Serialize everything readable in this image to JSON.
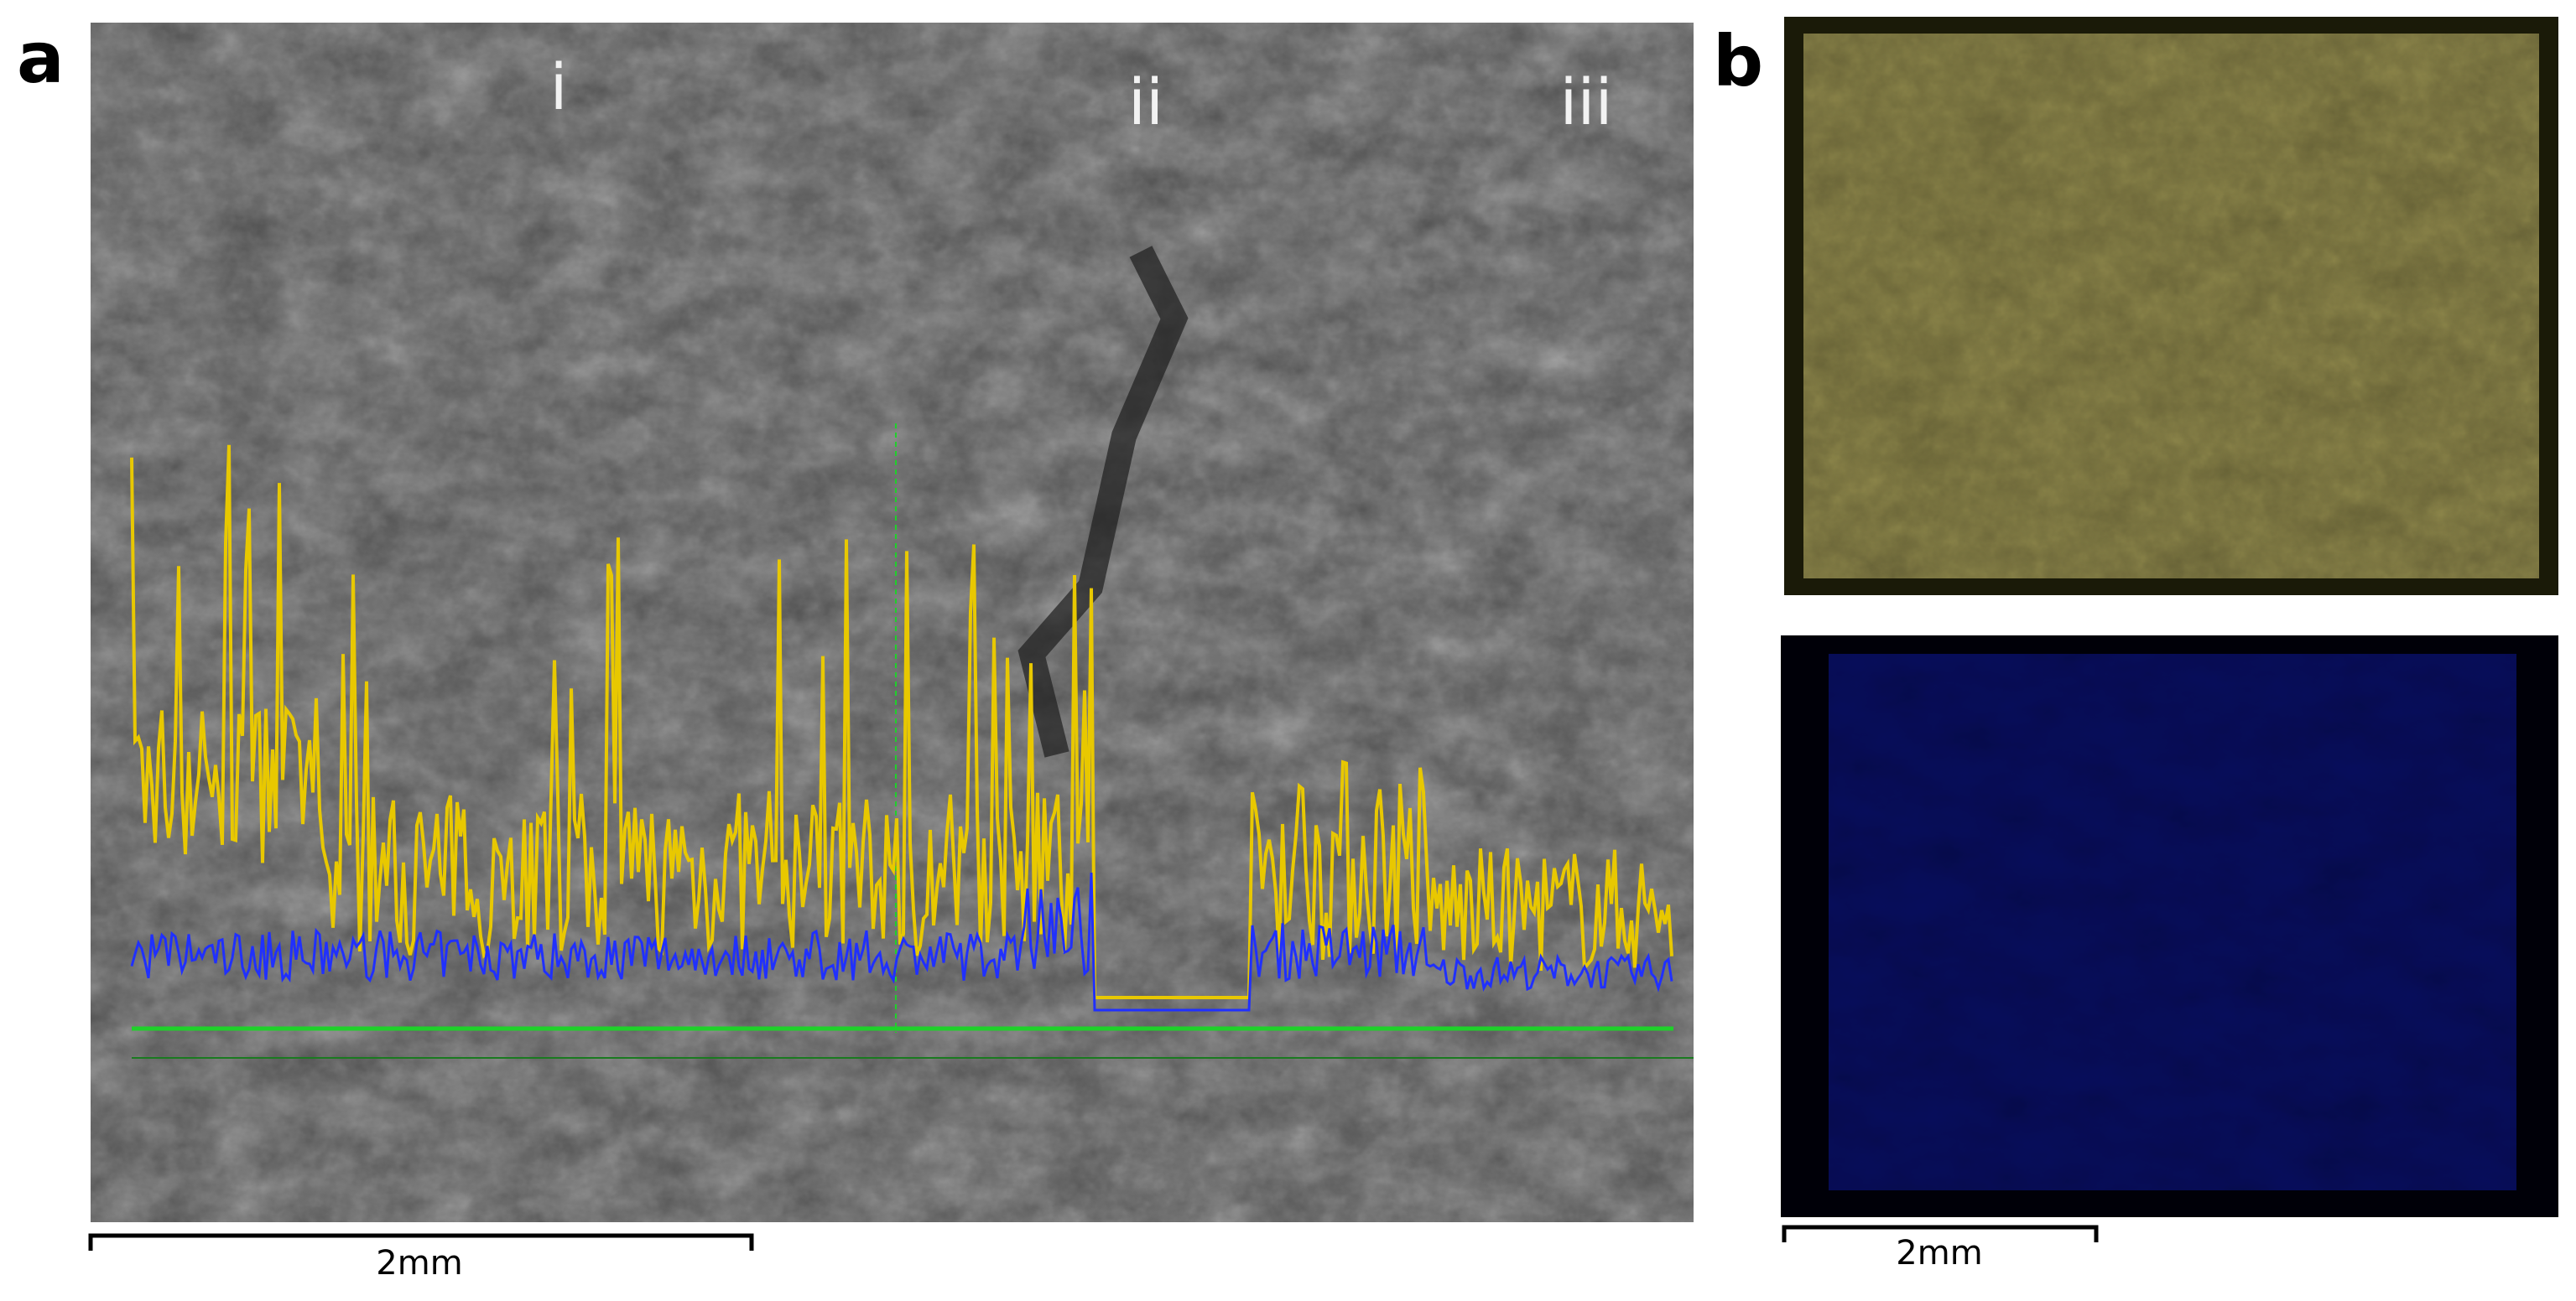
{
  "panels": {
    "a": {
      "label": "a",
      "annotations": [
        "i",
        "ii",
        "iii"
      ],
      "scale_bar": "2mm"
    },
    "b": {
      "label": "b",
      "scale_bar": "2mm"
    }
  }
}
